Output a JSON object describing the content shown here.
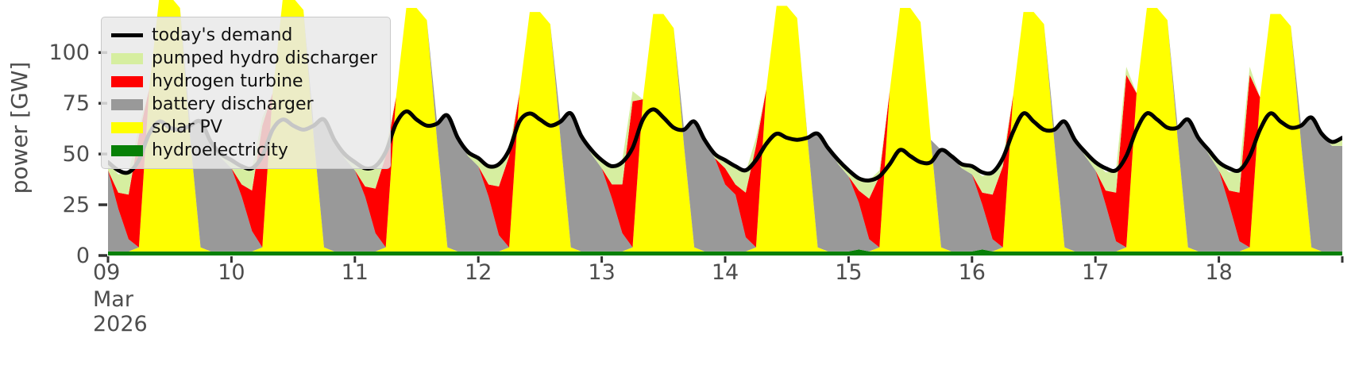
{
  "figure": {
    "background": "#ffffff",
    "text_color": "#4d4d4d"
  },
  "axes": {
    "ylabel": "power [GW]",
    "yticks": [
      0,
      25,
      50,
      75,
      100
    ],
    "xtick_days": [
      "09",
      "10",
      "11",
      "12",
      "13",
      "14",
      "15",
      "16",
      "17",
      "18"
    ],
    "xtick_sub": [
      "Mar",
      "2026"
    ],
    "tick_color": "#333333"
  },
  "legend": {
    "items": [
      {
        "label": "today's demand",
        "type": "line",
        "color": "#000000"
      },
      {
        "label": "pumped hydro discharger",
        "type": "patch",
        "color": "#d6eea0"
      },
      {
        "label": "hydrogen turbine",
        "type": "patch",
        "color": "#ff0000"
      },
      {
        "label": "battery discharger",
        "type": "patch",
        "color": "#999999"
      },
      {
        "label": "solar PV",
        "type": "patch",
        "color": "#ffff00"
      },
      {
        "label": "hydroelectricity",
        "type": "patch",
        "color": "#078007"
      }
    ]
  },
  "chart_data": {
    "type": "area",
    "stacked": true,
    "title": "",
    "xlabel": "",
    "ylabel": "power [GW]",
    "x_start": "2026-03-09 00:00",
    "x_end": "2026-03-19 00:00",
    "x_step_hours": 2,
    "ylim": [
      0,
      126
    ],
    "legend_position": "upper left",
    "grid": false,
    "series": [
      {
        "name": "hydroelectricity",
        "key": "hydroelectricity",
        "color": "#078007",
        "values": [
          2,
          2,
          2,
          2,
          2,
          2,
          2,
          2,
          2,
          2,
          2,
          2,
          2,
          2,
          2,
          2,
          2,
          2,
          2,
          2,
          2,
          2,
          2,
          2,
          2,
          2,
          2,
          2,
          2,
          2,
          2,
          2,
          2,
          2,
          2,
          2,
          2,
          2,
          2,
          2,
          2,
          2,
          2,
          2,
          2,
          2,
          2,
          2,
          2,
          2,
          2,
          2,
          2,
          2,
          2,
          2,
          2,
          2,
          2,
          2,
          2,
          2,
          2,
          2,
          2,
          2,
          2,
          2,
          2,
          2,
          2,
          2,
          2,
          3,
          2,
          2,
          2,
          2,
          2,
          2,
          2,
          2,
          2,
          2,
          2,
          3,
          2,
          2,
          2,
          2,
          2,
          2,
          2,
          2,
          2,
          2,
          2,
          2,
          2,
          2,
          2,
          2,
          2,
          2,
          2,
          2,
          2,
          2,
          2,
          2,
          2,
          2,
          2,
          2,
          2,
          2,
          2,
          2,
          2,
          2,
          2
        ]
      },
      {
        "name": "solar PV",
        "key": "solar-pv",
        "color": "#ffff00",
        "values": [
          0,
          0,
          0,
          2,
          80,
          126,
          126,
          120,
          55,
          2,
          0,
          0,
          0,
          0,
          0,
          2,
          78,
          125,
          125,
          119,
          56,
          2,
          0,
          0,
          0,
          0,
          0,
          2,
          76,
          120,
          120,
          114,
          54,
          2,
          0,
          0,
          0,
          0,
          0,
          2,
          78,
          118,
          118,
          112,
          55,
          2,
          0,
          0,
          0,
          0,
          0,
          2,
          75,
          117,
          117,
          110,
          52,
          2,
          0,
          0,
          0,
          0,
          0,
          2,
          80,
          121,
          121,
          115,
          56,
          2,
          0,
          0,
          0,
          0,
          0,
          2,
          79,
          120,
          120,
          113,
          55,
          2,
          0,
          0,
          0,
          0,
          0,
          2,
          77,
          118,
          118,
          112,
          54,
          2,
          0,
          0,
          0,
          0,
          0,
          2,
          78,
          120,
          120,
          114,
          55,
          2,
          0,
          0,
          0,
          0,
          0,
          2,
          76,
          117,
          117,
          111,
          53,
          2,
          0,
          0,
          0
        ]
      },
      {
        "name": "battery discharger",
        "key": "battery-discharger",
        "color": "#999999",
        "values": [
          40,
          21,
          6,
          0,
          0,
          0,
          0,
          0,
          7,
          62,
          54,
          46,
          41,
          27,
          10,
          0,
          0,
          0,
          0,
          0,
          6,
          63,
          55,
          46,
          40,
          27,
          9,
          0,
          0,
          0,
          0,
          0,
          9,
          65,
          56,
          47,
          42,
          27,
          8,
          0,
          0,
          0,
          0,
          0,
          9,
          66,
          57,
          48,
          41,
          26,
          9,
          0,
          0,
          0,
          0,
          0,
          8,
          62,
          55,
          46,
          33,
          28,
          7,
          0,
          0,
          0,
          0,
          0,
          1,
          56,
          51,
          43,
          37,
          23,
          6,
          0,
          0,
          0,
          0,
          0,
          0,
          48,
          47,
          41,
          38,
          22,
          6,
          0,
          0,
          0,
          0,
          0,
          6,
          62,
          55,
          47,
          40,
          23,
          5,
          0,
          0,
          0,
          0,
          0,
          6,
          63,
          56,
          48,
          40,
          23,
          5,
          0,
          0,
          0,
          0,
          0,
          9,
          64,
          58,
          52,
          52
        ]
      },
      {
        "name": "hydrogen turbine",
        "key": "hydrogen-turbine",
        "color": "#ff0000",
        "values": [
          0,
          8,
          22,
          55,
          0,
          0,
          0,
          0,
          0,
          0,
          0,
          0,
          0,
          6,
          20,
          60,
          0,
          0,
          0,
          0,
          0,
          0,
          0,
          0,
          0,
          5,
          22,
          45,
          0,
          0,
          0,
          0,
          0,
          0,
          0,
          0,
          0,
          6,
          24,
          45,
          0,
          0,
          0,
          0,
          0,
          0,
          0,
          0,
          0,
          7,
          24,
          72,
          0,
          0,
          0,
          0,
          0,
          0,
          0,
          0,
          8,
          5,
          22,
          50,
          0,
          0,
          0,
          0,
          0,
          0,
          0,
          0,
          0,
          6,
          20,
          35,
          0,
          0,
          0,
          0,
          0,
          0,
          0,
          0,
          0,
          6,
          22,
          40,
          0,
          0,
          0,
          0,
          0,
          0,
          0,
          0,
          0,
          7,
          24,
          85,
          0,
          0,
          0,
          0,
          0,
          0,
          0,
          0,
          0,
          7,
          24,
          85,
          0,
          0,
          0,
          0,
          0,
          0,
          0,
          0,
          0
        ]
      },
      {
        "name": "pumped hydro discharger",
        "key": "pumped-hydro-discharger",
        "color": "#d6eea0",
        "values": [
          4,
          9,
          11,
          4,
          0,
          0,
          0,
          0,
          0,
          0,
          0,
          2,
          4,
          9,
          11,
          4,
          0,
          0,
          0,
          0,
          0,
          0,
          0,
          2,
          4,
          9,
          12,
          4,
          0,
          0,
          0,
          0,
          0,
          0,
          0,
          2,
          4,
          9,
          11,
          4,
          0,
          0,
          0,
          0,
          0,
          0,
          0,
          2,
          4,
          9,
          12,
          5,
          0,
          0,
          0,
          0,
          0,
          0,
          0,
          2,
          4,
          8,
          10,
          4,
          0,
          0,
          0,
          0,
          0,
          0,
          0,
          2,
          3,
          7,
          9,
          3,
          0,
          0,
          0,
          0,
          0,
          0,
          0,
          2,
          4,
          8,
          11,
          4,
          0,
          0,
          0,
          0,
          0,
          0,
          0,
          2,
          4,
          9,
          11,
          4,
          0,
          0,
          0,
          0,
          0,
          0,
          0,
          2,
          4,
          9,
          11,
          4,
          0,
          0,
          0,
          0,
          0,
          0,
          0,
          2,
          4
        ]
      }
    ],
    "line_series": {
      "name": "today's demand",
      "key": "todays-demand",
      "color": "#000000",
      "width": 5,
      "values": [
        46,
        42,
        41,
        47,
        60,
        66,
        63,
        62,
        64,
        66,
        56,
        50,
        47,
        44,
        43,
        49,
        62,
        67,
        64,
        62,
        64,
        67,
        57,
        50,
        46,
        43,
        44,
        51,
        65,
        71,
        67,
        64,
        65,
        69,
        58,
        51,
        48,
        44,
        45,
        52,
        66,
        70,
        67,
        64,
        66,
        70,
        59,
        52,
        47,
        44,
        46,
        53,
        67,
        72,
        68,
        63,
        62,
        66,
        57,
        50,
        47,
        44,
        42,
        47,
        55,
        60,
        58,
        57,
        58,
        60,
        53,
        47,
        42,
        38,
        37,
        39,
        45,
        52,
        49,
        46,
        46,
        52,
        49,
        45,
        44,
        41,
        41,
        48,
        61,
        70,
        66,
        62,
        62,
        66,
        57,
        51,
        46,
        43,
        42,
        49,
        62,
        70,
        67,
        63,
        63,
        67,
        58,
        52,
        46,
        43,
        42,
        49,
        62,
        70,
        66,
        63,
        64,
        68,
        60,
        56,
        58
      ]
    }
  }
}
